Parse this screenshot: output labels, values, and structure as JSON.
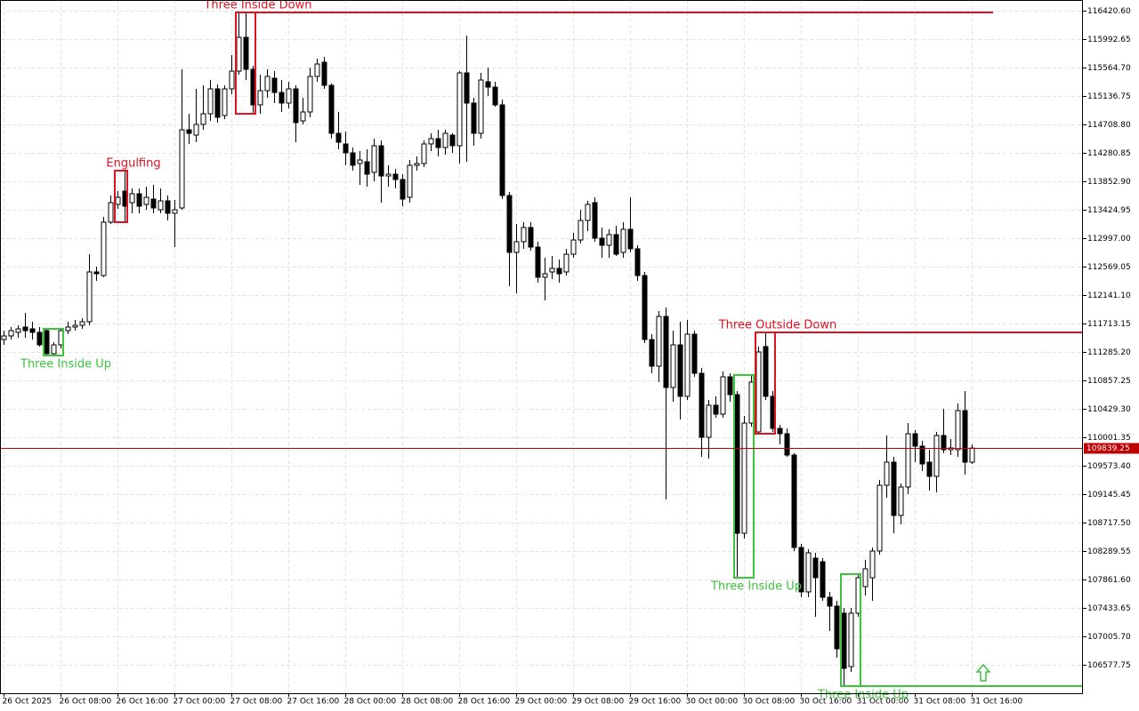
{
  "chart_data": {
    "type": "candlestick",
    "categories": [
      "26 Oct 2025",
      null,
      null,
      null,
      null,
      null,
      null,
      null,
      "26 Oct 08:00",
      null,
      null,
      null,
      null,
      null,
      null,
      null,
      "26 Oct 16:00",
      null,
      null,
      null,
      null,
      null,
      null,
      null,
      "27 Oct 00:00",
      null,
      null,
      null,
      null,
      null,
      null,
      null,
      "27 Oct 08:00",
      null,
      null,
      null,
      null,
      null,
      null,
      null,
      "27 Oct 16:00",
      null,
      null,
      null,
      null,
      null,
      null,
      null,
      "28 Oct 00:00",
      null,
      null,
      null,
      null,
      null,
      null,
      null,
      "28 Oct 08:00",
      null,
      null,
      null,
      null,
      null,
      null,
      null,
      "28 Oct 16:00",
      null,
      null,
      null,
      null,
      null,
      null,
      null,
      "29 Oct 00:00",
      null,
      null,
      null,
      null,
      null,
      null,
      null,
      "29 Oct 08:00",
      null,
      null,
      null,
      null,
      null,
      null,
      null,
      "29 Oct 16:00",
      null,
      null,
      null,
      null,
      null,
      null,
      null,
      "30 Oct 00:00",
      null,
      null,
      null,
      null,
      null,
      null,
      null,
      "30 Oct 08:00",
      null,
      null,
      null,
      null,
      null,
      null,
      null,
      "30 Oct 16:00",
      null,
      null,
      null,
      null,
      null,
      null,
      null,
      "31 Oct 00:00",
      null,
      null,
      null,
      null,
      null,
      null,
      null,
      "31 Oct 08:00",
      null,
      null,
      null,
      null,
      null,
      null,
      null,
      "31 Oct 16:00"
    ],
    "open": [
      111472,
      111526,
      111580,
      111660,
      111633,
      111580,
      111606,
      111259,
      111392,
      111606,
      111660,
      111686,
      111740,
      112489,
      112435,
      113238,
      113505,
      113706,
      113532,
      113666,
      113505,
      113585,
      113425,
      113559,
      113372,
      113452,
      114628,
      114548,
      114709,
      114869,
      115244,
      114843,
      115244,
      115511,
      116019,
      115538,
      115003,
      115217,
      115404,
      115190,
      115030,
      115244,
      114762,
      114896,
      115431,
      115645,
      115297,
      114575,
      114415,
      114281,
      114120,
      114147,
      113987,
      114388,
      113933,
      113960,
      113880,
      113612,
      114094,
      114120,
      114415,
      114495,
      114361,
      114548,
      114388,
      115484,
      115030,
      114575,
      115351,
      115270,
      115003,
      113639,
      112783,
      112944,
      113158,
      112863,
      112409,
      112489,
      112542,
      112489,
      112756,
      112970,
      113264,
      113532,
      112997,
      112890,
      113051,
      112783,
      113131,
      112837,
      112435,
      111472,
      111071,
      111820,
      110750,
      111392,
      110617,
      111553,
      110964,
      110001,
      110483,
      110349,
      110911,
      110643,
      108557,
      110215,
      110082,
      111366,
      110617,
      110135,
      110055,
      109734,
      108343,
      107675,
      108183,
      108129,
      107594,
      107461,
      107354,
      106551,
      107354,
      107755,
      107888,
      108290,
      109279,
      109627,
      108825,
      109253,
      110055,
      109868,
      109627,
      109413,
      110028,
      109814,
      109814,
      110403,
      109627
    ],
    "high": [
      111606,
      111660,
      111686,
      111874,
      111740,
      111660,
      111633,
      111432,
      111633,
      111740,
      111767,
      111793,
      112756,
      112569,
      113318,
      113639,
      113706,
      114013,
      113746,
      113746,
      113773,
      113799,
      113746,
      113639,
      113572,
      115538,
      114869,
      115244,
      115297,
      115377,
      115311,
      115297,
      115752,
      116394,
      116394,
      115591,
      115458,
      115538,
      115511,
      115377,
      115351,
      115297,
      115110,
      115565,
      115698,
      115725,
      115324,
      114896,
      114602,
      114361,
      114308,
      114334,
      114495,
      114468,
      114094,
      114040,
      113960,
      114174,
      114227,
      114468,
      114575,
      114628,
      114628,
      114575,
      115511,
      116046,
      115110,
      115484,
      115565,
      115351,
      115083,
      113692,
      113211,
      113238,
      113238,
      112944,
      112703,
      112730,
      112676,
      112837,
      113077,
      113425,
      113559,
      113612,
      113158,
      113131,
      113184,
      113238,
      113612,
      112890,
      112489,
      111553,
      111900,
      111954,
      111606,
      111740,
      111767,
      111606,
      111045,
      110563,
      110617,
      110991,
      110964,
      110697,
      110322,
      110938,
      111366,
      111580,
      110697,
      110189,
      110135,
      109761,
      108397,
      108316,
      108263,
      108183,
      107675,
      107541,
      107434,
      107434,
      107942,
      108156,
      108343,
      109360,
      110028,
      109707,
      109306,
      110215,
      110108,
      109948,
      109814,
      110082,
      110429,
      109975,
      110510,
      110697,
      109894
    ],
    "low": [
      111392,
      111472,
      111499,
      111499,
      111472,
      111366,
      111232,
      111232,
      111339,
      111553,
      111606,
      111633,
      111686,
      112355,
      112409,
      113211,
      113438,
      113238,
      113372,
      113372,
      113425,
      113372,
      113372,
      113264,
      112863,
      113425,
      114415,
      114441,
      114628,
      114762,
      114736,
      114789,
      115163,
      115458,
      115377,
      114869,
      114869,
      115110,
      115030,
      114896,
      114949,
      114441,
      114709,
      114816,
      115351,
      115244,
      114495,
      114334,
      114094,
      114013,
      113799,
      113773,
      113853,
      113532,
      113773,
      113746,
      113478,
      113532,
      114013,
      114067,
      114308,
      114227,
      114254,
      114281,
      114120,
      114147,
      114388,
      114495,
      115137,
      114976,
      113585,
      112275,
      112168,
      112837,
      112810,
      112328,
      112061,
      112382,
      112328,
      112435,
      112703,
      112917,
      113104,
      112944,
      112703,
      112703,
      112730,
      112703,
      112783,
      112355,
      111419,
      110964,
      110831,
      109065,
      110536,
      110269,
      110563,
      110911,
      109707,
      109681,
      110296,
      110296,
      110536,
      107888,
      108477,
      110162,
      110055,
      110563,
      110082,
      109894,
      109707,
      108290,
      107594,
      107594,
      107300,
      107541,
      107086,
      106685,
      106257,
      106471,
      107300,
      107621,
      107541,
      108236,
      109092,
      108557,
      108691,
      109146,
      109627,
      109493,
      109199,
      109172,
      109761,
      109734,
      109707,
      109440,
      109600
    ],
    "close": [
      111526,
      111606,
      111633,
      111606,
      111580,
      111392,
      111259,
      111392,
      111606,
      111660,
      111686,
      111740,
      112489,
      112462,
      113238,
      113532,
      113612,
      113478,
      113666,
      113478,
      113612,
      113452,
      113559,
      113372,
      113425,
      114628,
      114575,
      114709,
      114869,
      115244,
      114816,
      115244,
      115511,
      116019,
      115538,
      115003,
      115217,
      115431,
      115190,
      115030,
      115244,
      114736,
      114896,
      115431,
      115618,
      115297,
      114575,
      114441,
      114281,
      114094,
      114174,
      113960,
      114388,
      113933,
      113960,
      113880,
      113585,
      114094,
      114120,
      114415,
      114495,
      114361,
      114575,
      114388,
      115484,
      115030,
      114575,
      115377,
      115270,
      115003,
      113639,
      112783,
      112944,
      113158,
      112863,
      112409,
      112462,
      112542,
      112462,
      112756,
      112970,
      113264,
      113505,
      112997,
      112890,
      113051,
      112756,
      113131,
      112837,
      112435,
      111472,
      111071,
      111820,
      110750,
      111392,
      110617,
      111553,
      110964,
      110001,
      110483,
      110349,
      110911,
      110643,
      108557,
      110215,
      110831,
      111285,
      110617,
      110135,
      110055,
      109734,
      108343,
      107675,
      108263,
      107888,
      107594,
      107461,
      106819,
      106524,
      107354,
      107888,
      108022,
      108290,
      109279,
      109627,
      108825,
      109253,
      110055,
      109868,
      109600,
      109413,
      110028,
      109814,
      109841,
      110403,
      109627,
      109839.25
    ],
    "bull_color": "#ffffff",
    "bear_color": "#000000",
    "ylim": [
      106150,
      116581
    ],
    "yticks": [
      {
        "value": 116420.6,
        "label": "116420.60"
      },
      {
        "value": 115992.65,
        "label": "115992.65"
      },
      {
        "value": 115564.7,
        "label": "115564.70"
      },
      {
        "value": 115136.75,
        "label": "115136.75"
      },
      {
        "value": 114708.8,
        "label": "114708.80"
      },
      {
        "value": 114280.85,
        "label": "114280.85"
      },
      {
        "value": 113852.9,
        "label": "113852.90"
      },
      {
        "value": 113424.95,
        "label": "113424.95"
      },
      {
        "value": 112997,
        "label": "112997.00"
      },
      {
        "value": 112569.05,
        "label": "112569.05"
      },
      {
        "value": 112141.1,
        "label": "112141.10"
      },
      {
        "value": 111713.15,
        "label": "111713.15"
      },
      {
        "value": 111285.2,
        "label": "111285.20"
      },
      {
        "value": 110857.25,
        "label": "110857.25"
      },
      {
        "value": 110429.3,
        "label": "110429.30"
      },
      {
        "value": 110001.35,
        "label": "110001.35"
      },
      {
        "value": 109573.4,
        "label": "109573.40"
      },
      {
        "value": 109145.45,
        "label": "109145.45"
      },
      {
        "value": 108717.5,
        "label": "108717.50"
      },
      {
        "value": 108289.55,
        "label": "108289.55"
      },
      {
        "value": 107861.6,
        "label": "107861.60"
      },
      {
        "value": 107433.65,
        "label": "107433.65"
      },
      {
        "value": 107005.7,
        "label": "107005.70"
      },
      {
        "value": 106577.75,
        "label": "106577.75"
      }
    ],
    "grid": true,
    "current_price": 109839.25,
    "current_price_color": "#c00000",
    "patterns": [
      {
        "label": "Three Inside Up",
        "color": "#3cc43c"
      },
      {
        "label": "Engulfing",
        "color": "#e01020"
      },
      {
        "label": "Three Inside Down",
        "color": "#e01020"
      },
      {
        "label": "Three Inside Up",
        "color": "#3cc43c"
      },
      {
        "label": "Three Outside Down",
        "color": "#e01020"
      },
      {
        "label": "Three Inside Up",
        "color": "#3cc43c"
      }
    ]
  }
}
